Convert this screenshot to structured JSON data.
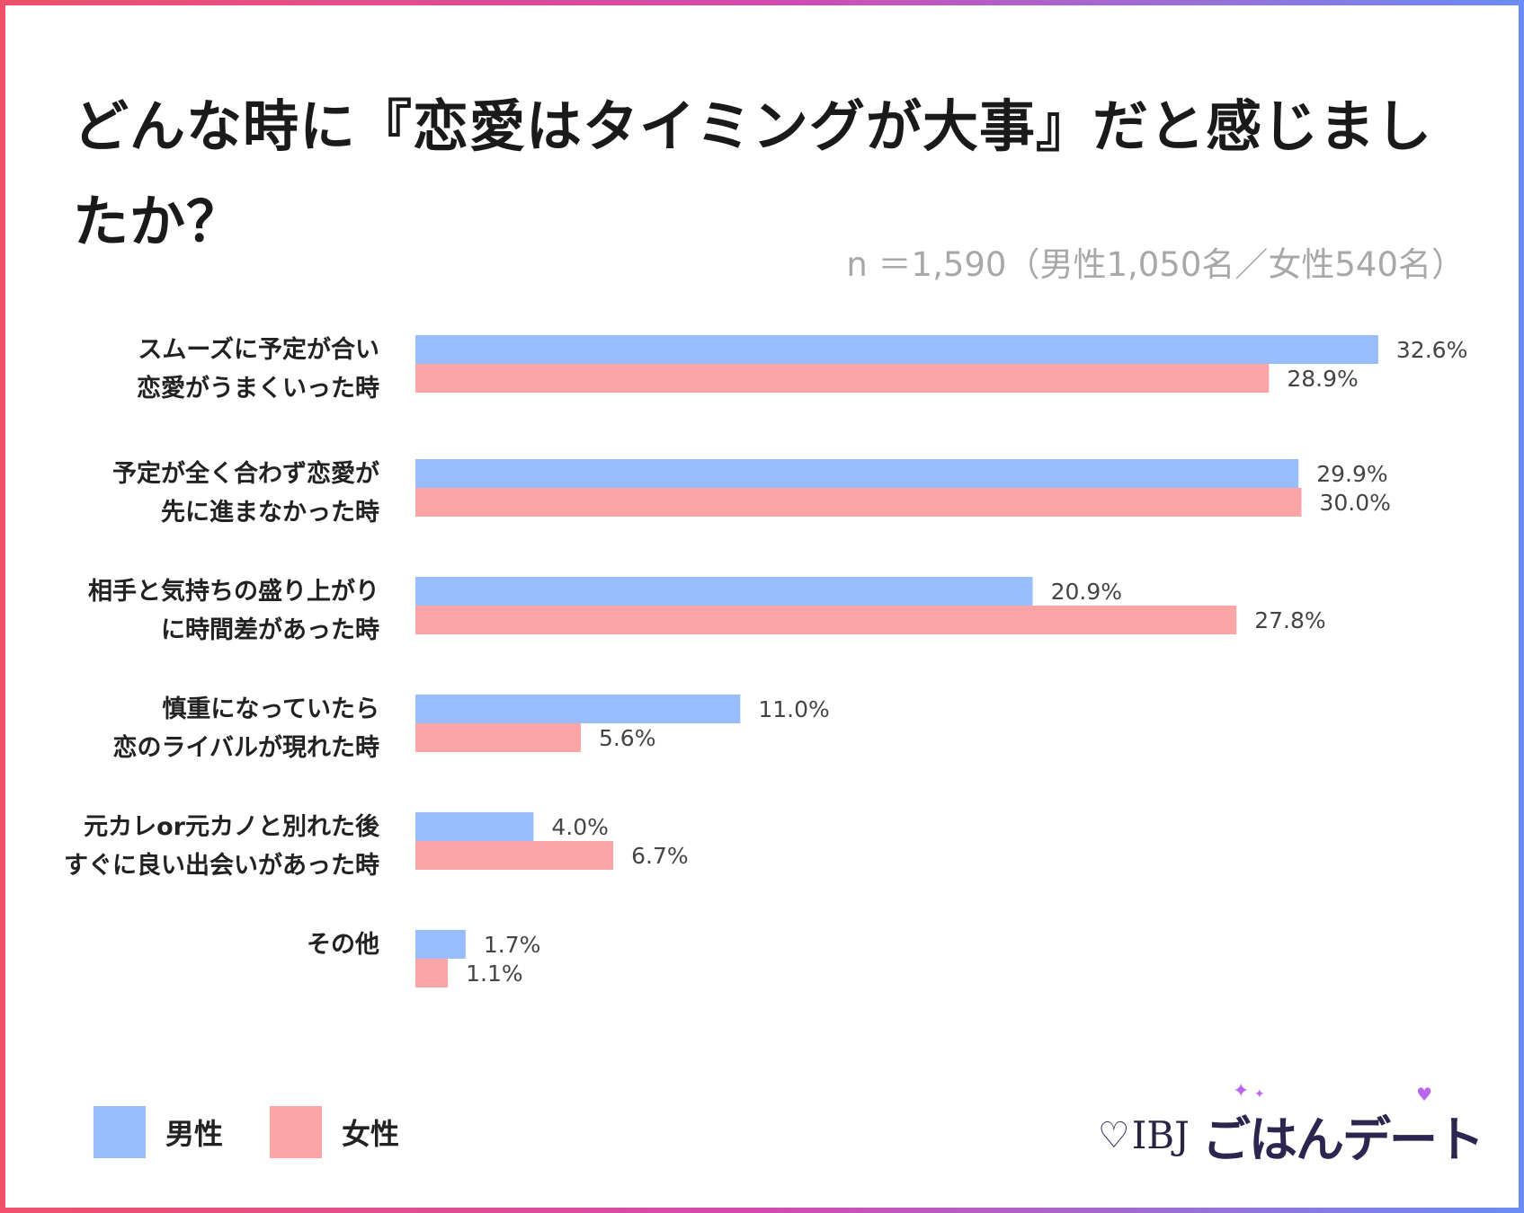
{
  "title": "どんな時に『恋愛はタイミングが大事』だと感じましたか？",
  "sample_note": "n ＝1,590（男性1,050名／女性540名）",
  "colors": {
    "male": "#97bdfd",
    "female": "#fda4a6",
    "accent_border_left": "#f0506a",
    "accent_border_right": "#6a8cf5"
  },
  "legend": {
    "male": "男性",
    "female": "女性"
  },
  "logo": {
    "heart_icon": "heart-outline-icon",
    "brand_prefix": "IBJ",
    "brand_name": "ごはんデート"
  },
  "chart_data": {
    "type": "bar",
    "orientation": "horizontal",
    "title": "どんな時に『恋愛はタイミングが大事』だと感じましたか？",
    "unit": "%",
    "xlim": [
      0,
      35
    ],
    "grid": false,
    "legend_position": "bottom-left",
    "categories": [
      [
        "スムーズに予定が合い",
        "恋愛がうまくいった時"
      ],
      [
        "予定が全く合わず恋愛が",
        "先に進まなかった時"
      ],
      [
        "相手と気持ちの盛り上がり",
        "に時間差があった時"
      ],
      [
        "慎重になっていたら",
        "恋のライバルが現れた時"
      ],
      [
        "元カレor元カノと別れた後",
        "すぐに良い出会いがあった時"
      ],
      [
        "その他"
      ]
    ],
    "series": [
      {
        "name": "男性",
        "values": [
          32.6,
          29.9,
          20.9,
          11.0,
          4.0,
          1.7
        ],
        "labels": [
          "32.6%",
          "29.9%",
          "20.9%",
          "11.0%",
          "4.0%",
          "1.7%"
        ]
      },
      {
        "name": "女性",
        "values": [
          28.9,
          30.0,
          27.8,
          5.6,
          6.7,
          1.1
        ],
        "labels": [
          "28.9%",
          "30.0%",
          "27.8%",
          "5.6%",
          "6.7%",
          "1.1%"
        ]
      }
    ]
  }
}
